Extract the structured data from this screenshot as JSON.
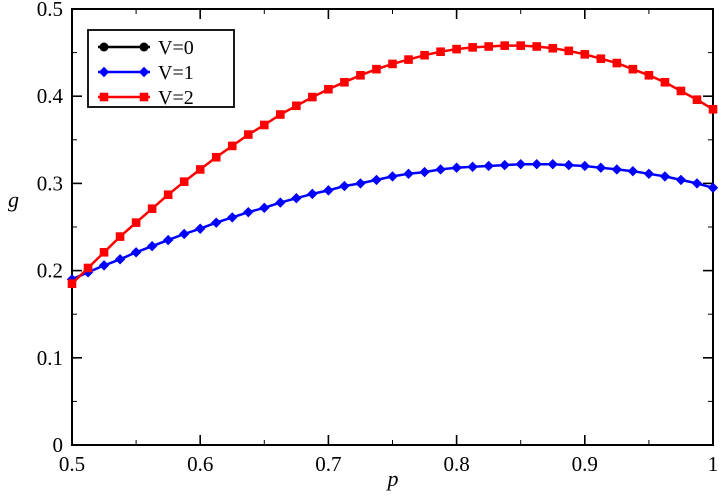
{
  "chart_data": {
    "type": "line",
    "title": "",
    "xlabel": "p",
    "ylabel": "g",
    "xlim": [
      0.5,
      1.0
    ],
    "ylim": [
      0,
      0.5
    ],
    "grid": false,
    "xticks": [
      0.5,
      0.6,
      0.7,
      0.8,
      0.9,
      1.0
    ],
    "xtick_labels": [
      "0.5",
      "0.6",
      "0.7",
      "0.8",
      "0.9",
      "1"
    ],
    "yticks": [
      0,
      0.1,
      0.2,
      0.3,
      0.4,
      0.5
    ],
    "ytick_labels": [
      "0",
      "0.1",
      "0.2",
      "0.3",
      "0.4",
      "0.5"
    ],
    "legend": {
      "position": "top-left",
      "entries": [
        {
          "label": "V=0",
          "color": "#000000",
          "marker": "circle"
        },
        {
          "label": "V=1",
          "color": "#0000ff",
          "marker": "diamond"
        },
        {
          "label": "V=2",
          "color": "#ff0000",
          "marker": "square"
        }
      ]
    },
    "x": [
      0.5,
      0.5125,
      0.525,
      0.5375,
      0.55,
      0.5625,
      0.575,
      0.5875,
      0.6,
      0.6125,
      0.625,
      0.6375,
      0.65,
      0.6625,
      0.675,
      0.6875,
      0.7,
      0.7125,
      0.725,
      0.7375,
      0.75,
      0.7625,
      0.775,
      0.7875,
      0.8,
      0.8125,
      0.825,
      0.8375,
      0.85,
      0.8625,
      0.875,
      0.8875,
      0.9,
      0.9125,
      0.925,
      0.9375,
      0.95,
      0.9625,
      0.975,
      0.9875,
      1.0
    ],
    "series": [
      {
        "name": "V=0",
        "color": "#000000",
        "marker": "circle",
        "visible_in_plot": false,
        "values": []
      },
      {
        "name": "V=1",
        "color": "#0000ff",
        "marker": "diamond",
        "visible_in_plot": true,
        "values": [
          0.19,
          0.198,
          0.206,
          0.213,
          0.221,
          0.228,
          0.235,
          0.242,
          0.248,
          0.255,
          0.261,
          0.267,
          0.272,
          0.278,
          0.283,
          0.288,
          0.292,
          0.297,
          0.3,
          0.304,
          0.308,
          0.311,
          0.313,
          0.316,
          0.318,
          0.319,
          0.32,
          0.321,
          0.322,
          0.322,
          0.322,
          0.321,
          0.32,
          0.318,
          0.316,
          0.314,
          0.311,
          0.308,
          0.304,
          0.3,
          0.295
        ]
      },
      {
        "name": "V=2",
        "color": "#ff0000",
        "marker": "square",
        "visible_in_plot": true,
        "values": [
          0.185,
          0.203,
          0.221,
          0.239,
          0.255,
          0.271,
          0.287,
          0.302,
          0.316,
          0.33,
          0.343,
          0.356,
          0.367,
          0.379,
          0.389,
          0.399,
          0.408,
          0.416,
          0.424,
          0.431,
          0.437,
          0.442,
          0.447,
          0.451,
          0.454,
          0.456,
          0.457,
          0.458,
          0.458,
          0.457,
          0.455,
          0.452,
          0.448,
          0.443,
          0.438,
          0.431,
          0.424,
          0.416,
          0.406,
          0.396,
          0.385
        ]
      }
    ]
  }
}
